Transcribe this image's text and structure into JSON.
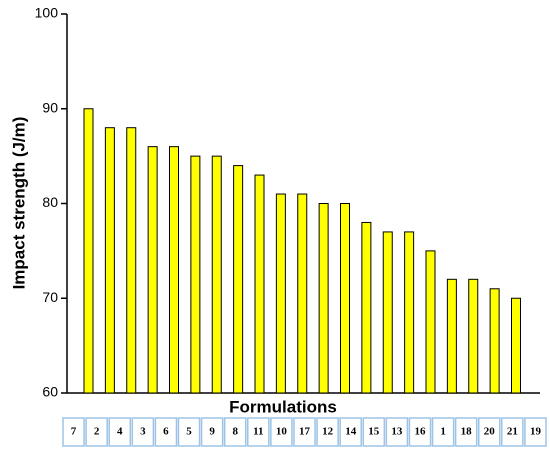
{
  "chart_data": {
    "type": "bar",
    "x_label": "Formulations",
    "y_label": "Impact strength (J/m)",
    "categories": [
      "7",
      "2",
      "4",
      "3",
      "6",
      "5",
      "9",
      "8",
      "11",
      "10",
      "17",
      "12",
      "14",
      "15",
      "13",
      "16",
      "1",
      "18",
      "20",
      "21",
      "19"
    ],
    "values": [
      90,
      88,
      88,
      86,
      86,
      85,
      85,
      84,
      83,
      81,
      81,
      80,
      80,
      78,
      77,
      77,
      75,
      72,
      72,
      71,
      70
    ],
    "color": "#ffff00",
    "ylim": [
      60,
      100
    ],
    "yticks": [
      60,
      70,
      80,
      90,
      100
    ],
    "grid": false
  }
}
